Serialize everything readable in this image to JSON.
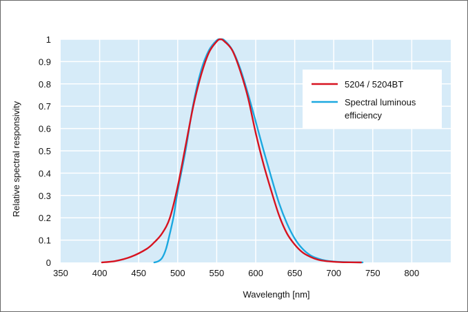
{
  "chart_data": {
    "type": "line",
    "title": "",
    "xlabel": "Wavelength [nm]",
    "ylabel": "Relative spectral responsivity",
    "xlim": [
      350,
      850
    ],
    "ylim": [
      0,
      1
    ],
    "x_ticks": [
      350,
      400,
      450,
      500,
      550,
      600,
      650,
      700,
      750,
      800
    ],
    "x_tick_labels": [
      "350",
      "400",
      "450",
      "500",
      "550",
      "600",
      "650",
      "700",
      "750",
      "800"
    ],
    "y_ticks": [
      0,
      0.1,
      0.2,
      0.3,
      0.4,
      0.5,
      0.6,
      0.7,
      0.8,
      0.9,
      1
    ],
    "y_tick_labels": [
      "0",
      "0.1",
      "0.2",
      "0.3",
      "0.4",
      "0.5",
      "0.6",
      "0.7",
      "0.8",
      "0.9",
      "1"
    ],
    "grid": true,
    "plot_background": "#d6ebf8",
    "legend_position": "top-right",
    "series": [
      {
        "name": "5204 / 5204BT",
        "color": "#d7121f",
        "x": [
          403,
          420,
          440,
          460,
          470,
          480,
          490,
          500,
          510,
          520,
          530,
          540,
          550,
          555,
          560,
          570,
          580,
          590,
          600,
          610,
          620,
          630,
          640,
          650,
          660,
          670,
          680,
          690,
          700,
          710,
          720,
          735
        ],
        "y": [
          0.0,
          0.006,
          0.025,
          0.06,
          0.09,
          0.13,
          0.2,
          0.34,
          0.52,
          0.7,
          0.84,
          0.94,
          0.99,
          1.0,
          0.99,
          0.95,
          0.86,
          0.74,
          0.58,
          0.44,
          0.32,
          0.21,
          0.13,
          0.08,
          0.045,
          0.025,
          0.012,
          0.006,
          0.003,
          0.001,
          0.0005,
          0.0
        ]
      },
      {
        "name": "Spectral luminous efficiency",
        "color": "#1ba8e0",
        "x": [
          470,
          475,
          480,
          485,
          490,
          495,
          500,
          510,
          520,
          530,
          540,
          550,
          555,
          560,
          570,
          580,
          590,
          600,
          610,
          620,
          630,
          640,
          650,
          660,
          670,
          680,
          690,
          700,
          710,
          720,
          737
        ],
        "y": [
          0.0,
          0.005,
          0.02,
          0.06,
          0.13,
          0.21,
          0.32,
          0.5,
          0.71,
          0.86,
          0.95,
          0.995,
          1.0,
          0.995,
          0.952,
          0.87,
          0.757,
          0.631,
          0.503,
          0.381,
          0.265,
          0.175,
          0.107,
          0.061,
          0.032,
          0.017,
          0.008,
          0.004,
          0.002,
          0.001,
          0.0
        ]
      }
    ]
  }
}
